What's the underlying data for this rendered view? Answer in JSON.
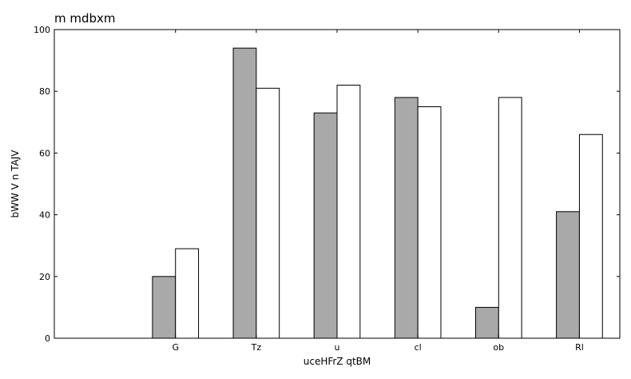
{
  "chart_data": {
    "type": "bar",
    "title": "m  mdbxm",
    "xlabel": "uceHFrZ qtBM",
    "ylabel": "bWW V n TAJV",
    "categories": [
      "G",
      "Tz",
      "u",
      "cl",
      "ob",
      "Rl"
    ],
    "series": [
      {
        "values": [
          20,
          94,
          73,
          78,
          10,
          41
        ],
        "color": "#a9a9a9"
      },
      {
        "values": [
          29,
          81,
          82,
          75,
          78,
          66
        ],
        "color": "#ffffff"
      }
    ],
    "ylim": [
      0,
      100
    ],
    "yticks": [
      0,
      20,
      40,
      60,
      80,
      100
    ],
    "xlim": [
      -0.5,
      6.5
    ],
    "grid": false,
    "legend": "none"
  }
}
